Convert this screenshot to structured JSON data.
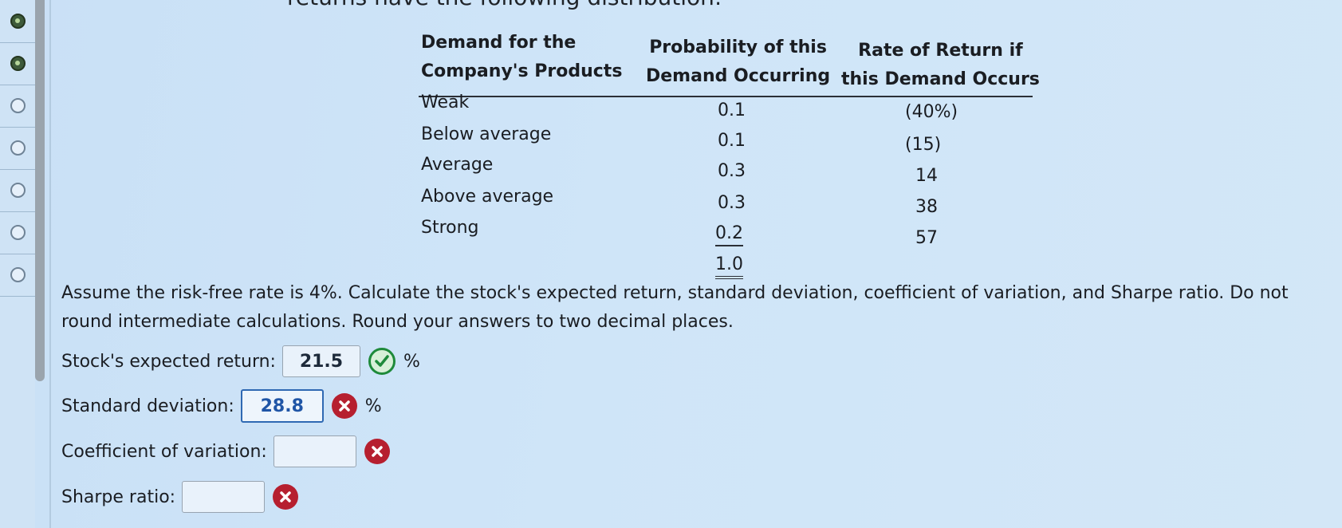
{
  "header": {
    "clipped_text": "returns have the following distribution:"
  },
  "nav": {
    "items": [
      "checked",
      "checked",
      "open",
      "open",
      "open",
      "open",
      "open"
    ]
  },
  "table": {
    "headers": [
      [
        "Demand for the",
        "Company's Products"
      ],
      [
        "Probability of this",
        "Demand Occurring"
      ],
      [
        "Rate of Return if",
        "this Demand Occurs"
      ]
    ],
    "rows": [
      {
        "demand": "Weak",
        "probability": "0.1",
        "return": "(40%)"
      },
      {
        "demand": "Below average",
        "probability": "0.1",
        "return": "(15)"
      },
      {
        "demand": "Average",
        "probability": "0.3",
        "return": "14"
      },
      {
        "demand": "Above average",
        "probability": "0.3",
        "return": "38"
      },
      {
        "demand": "Strong",
        "probability": "0.2",
        "return": "57"
      }
    ],
    "total_probability": "1.0"
  },
  "instructions": "Assume the risk-free rate is 4%. Calculate the stock's expected return, standard deviation, coefficient of variation, and Sharpe ratio. Do not round intermediate calculations. Round your answers to two decimal places.",
  "questions": {
    "expected_return": {
      "label": "Stock's expected return:",
      "value": "21.5",
      "unit": "%",
      "status": "correct"
    },
    "std_dev": {
      "label": "Standard deviation:",
      "value": "28.8",
      "unit": "%",
      "status": "incorrect"
    },
    "cv": {
      "label": "Coefficient of variation:",
      "value": "",
      "status": "incorrect"
    },
    "sharpe": {
      "label": "Sharpe ratio:",
      "value": "",
      "status": "incorrect"
    }
  },
  "colors": {
    "correct": "#1e8a3a",
    "incorrect": "#b61f2f",
    "active_input": "#2f69b3"
  }
}
